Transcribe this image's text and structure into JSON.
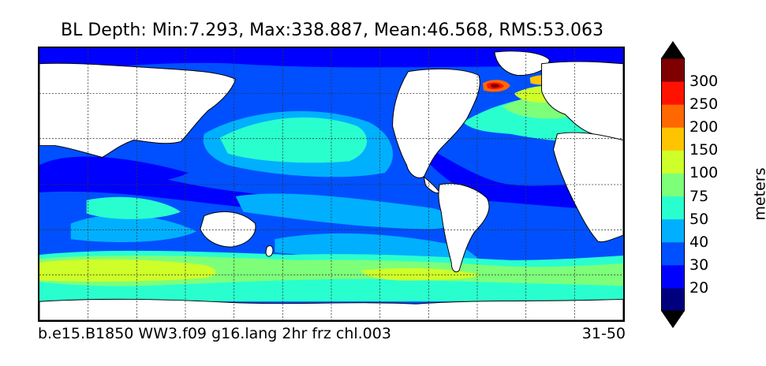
{
  "title": "BL Depth: Min:7.293, Max:338.887, Mean:46.568, RMS:53.063",
  "stats": {
    "variable": "BL Depth",
    "min": 7.293,
    "max": 338.887,
    "mean": 46.568,
    "rms": 53.063
  },
  "footer": {
    "case_name": "b.e15.B1850 WW3.f09 g16.lang 2hr frz chl.003",
    "years": "31-50"
  },
  "colorbar": {
    "label": "meters",
    "levels": [
      "20",
      "30",
      "40",
      "50",
      "75",
      "100",
      "150",
      "200",
      "250",
      "300"
    ],
    "colors": [
      "#00007f",
      "#0000ff",
      "#0050ff",
      "#00b0ff",
      "#29ffce",
      "#7dff7a",
      "#ceff29",
      "#ffc400",
      "#ff6800",
      "#ff1300",
      "#7f0000"
    ],
    "extend": "both"
  },
  "map": {
    "projection": "cylindrical",
    "gridlines": true,
    "land_color": "#ffffff",
    "coastline_color": "#000000"
  }
}
